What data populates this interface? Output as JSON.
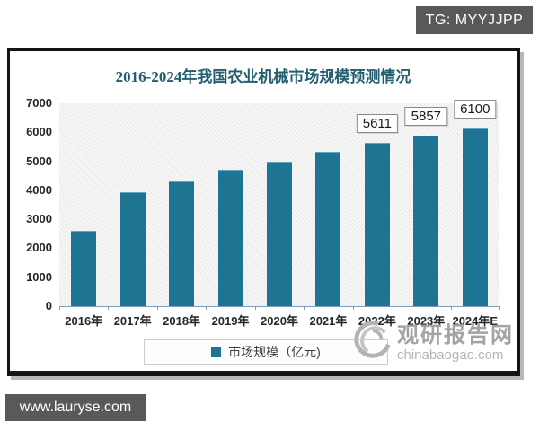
{
  "overlay": {
    "tg_label": "TG: MYYJJPP",
    "site_label": "www.lauryse.com",
    "box_bg": "#595959"
  },
  "watermark": {
    "logo": "swirl-logo",
    "name": "观研报告网",
    "domain": "chinabaogao.com"
  },
  "chart_data": {
    "type": "bar",
    "title": "2016-2024年我国农业机械市场规模预测情况",
    "categories": [
      "2016年",
      "2017年",
      "2018年",
      "2019年",
      "2020年",
      "2021年",
      "2022年",
      "2023年",
      "2024年E"
    ],
    "values": [
      2570,
      3900,
      4286,
      4680,
      4950,
      5310,
      5611,
      5857,
      6100
    ],
    "data_labels": [
      null,
      null,
      null,
      null,
      null,
      null,
      "5611",
      "5857",
      "6100"
    ],
    "legend": [
      "市场规模（亿元)"
    ],
    "xlabel": "",
    "ylabel": "",
    "ylim": [
      0,
      7000
    ],
    "yticks": [
      0,
      1000,
      2000,
      3000,
      4000,
      5000,
      6000,
      7000
    ],
    "grid": false,
    "legend_position": "bottom",
    "bar_color": "#1e7493",
    "title_color": "#235e70",
    "plot_hatch": true
  }
}
